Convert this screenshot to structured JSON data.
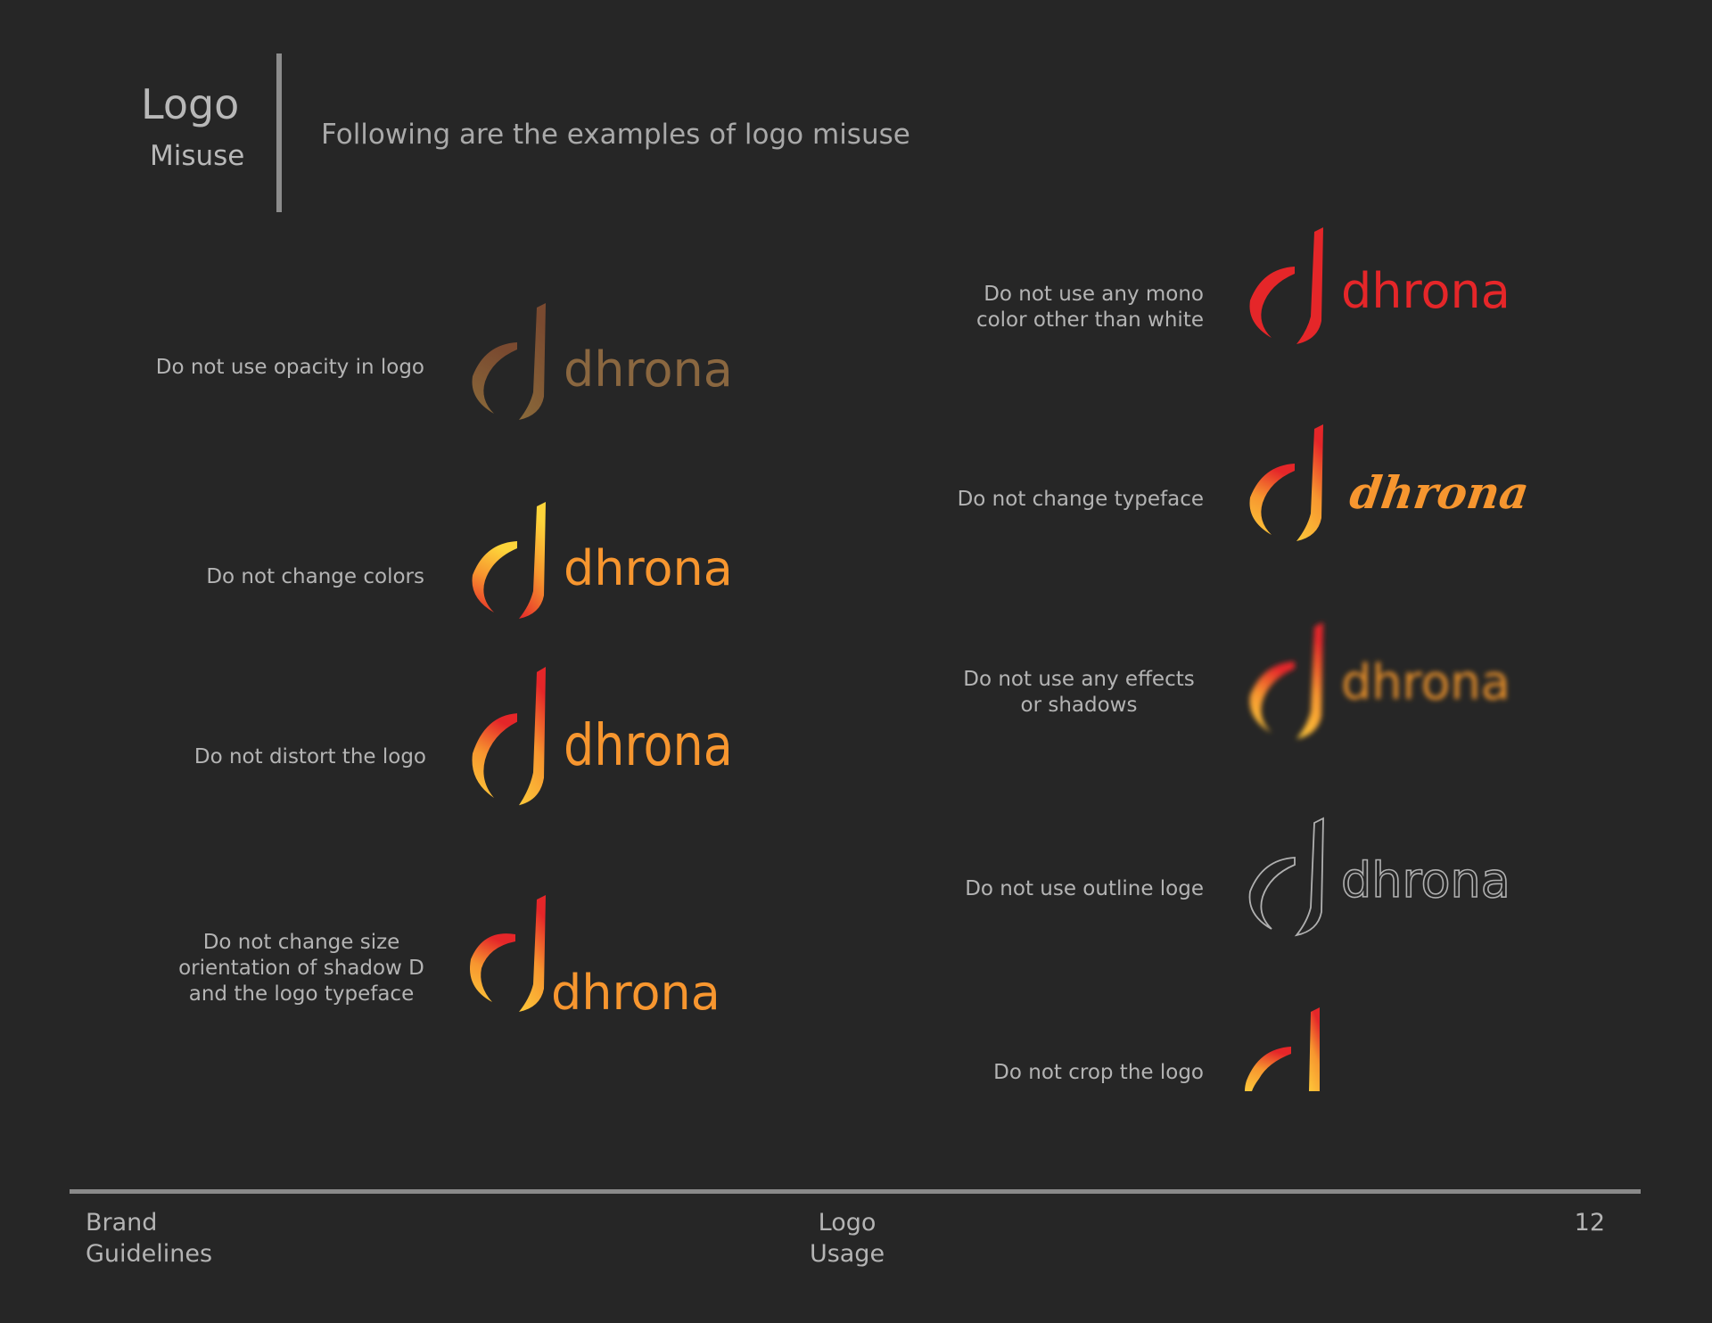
{
  "header": {
    "title": "Logo",
    "subtitle": "Misuse",
    "description": "Following are the examples of logo misuse"
  },
  "colors": {
    "background": "#262626",
    "brand_red": "#e52629",
    "brand_orange": "#f7962f",
    "brand_yellow": "#fdc93a"
  },
  "wordmark": "dhrona",
  "examples": [
    {
      "caption": [
        "Do not use opacity in logo"
      ],
      "variant": "opacity"
    },
    {
      "caption": [
        "Do not change colors"
      ],
      "variant": "changed-colors"
    },
    {
      "caption": [
        "Do not distort the logo"
      ],
      "variant": "distorted"
    },
    {
      "caption": [
        "Do not change size",
        "orientation of shadow D",
        "and the logo typeface"
      ],
      "variant": "changed-size"
    },
    {
      "caption": [
        "Do not use any mono",
        "color other than white"
      ],
      "variant": "mono-red"
    },
    {
      "caption": [
        "Do not change typeface"
      ],
      "variant": "script-typeface"
    },
    {
      "caption": [
        "Do not use any effects",
        "or shadows"
      ],
      "variant": "blurred"
    },
    {
      "caption": [
        "Do not use outline loge"
      ],
      "variant": "outline"
    },
    {
      "caption": [
        "Do not crop the logo"
      ],
      "variant": "cropped"
    }
  ],
  "footer": {
    "left": [
      "Brand",
      "Guidelines"
    ],
    "center": [
      "Logo",
      "Usage"
    ],
    "page": "12"
  }
}
